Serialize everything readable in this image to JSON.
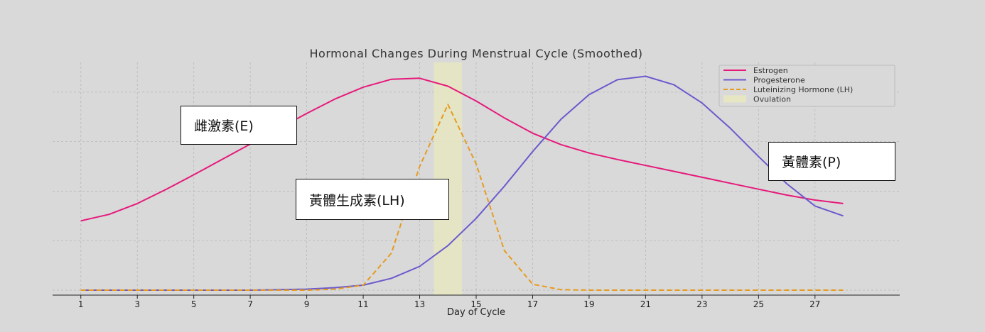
{
  "chart_data": {
    "type": "line",
    "title": "Hormonal Changes During Menstrual Cycle (Smoothed)",
    "xlabel": "Day of Cycle",
    "ylabel": "",
    "x": [
      1,
      2,
      3,
      4,
      5,
      6,
      7,
      8,
      9,
      10,
      11,
      12,
      13,
      14,
      15,
      16,
      17,
      18,
      19,
      20,
      21,
      22,
      23,
      24,
      25,
      26,
      27,
      28
    ],
    "xlim": [
      0,
      30
    ],
    "ylim": [
      -0.1,
      4.6
    ],
    "xticks": [
      1,
      3,
      5,
      7,
      9,
      11,
      13,
      15,
      17,
      19,
      21,
      23,
      25,
      27
    ],
    "grid": true,
    "legend_position": "top-right",
    "series": [
      {
        "name": "Estrogen",
        "color": "#e6197a",
        "style": "solid",
        "values": [
          1.4,
          1.53,
          1.75,
          2.03,
          2.33,
          2.64,
          2.95,
          3.26,
          3.57,
          3.86,
          4.1,
          4.26,
          4.28,
          4.12,
          3.82,
          3.48,
          3.17,
          2.94,
          2.77,
          2.64,
          2.52,
          2.4,
          2.28,
          2.16,
          2.04,
          1.92,
          1.82,
          1.75
        ]
      },
      {
        "name": "Progesterone",
        "color": "#6a5acd",
        "style": "solid",
        "values": [
          0.0,
          0.0,
          0.0,
          0.0,
          0.0,
          0.0,
          0.0,
          0.01,
          0.02,
          0.05,
          0.1,
          0.24,
          0.48,
          0.9,
          1.45,
          2.1,
          2.8,
          3.45,
          3.95,
          4.25,
          4.32,
          4.15,
          3.78,
          3.27,
          2.7,
          2.15,
          1.7,
          1.5
        ]
      },
      {
        "name": "Luteinizing Hormone (LH)",
        "color": "#e69b1f",
        "style": "dashed",
        "values": [
          0.0,
          0.0,
          0.0,
          0.0,
          0.0,
          0.0,
          0.0,
          0.0,
          0.0,
          0.02,
          0.1,
          0.75,
          2.5,
          3.75,
          2.55,
          0.8,
          0.12,
          0.01,
          0.0,
          0.0,
          0.0,
          0.0,
          0.0,
          0.0,
          0.0,
          0.0,
          0.0,
          0.0
        ]
      }
    ],
    "shaded_regions": [
      {
        "name": "Ovulation",
        "x_start": 13.5,
        "x_end": 14.5,
        "color": "#e6e6c2"
      }
    ]
  },
  "annotations": [
    {
      "id": "estrogen",
      "text": "雌激素(E)"
    },
    {
      "id": "lh",
      "text": "黃體生成素(LH)"
    },
    {
      "id": "progesterone",
      "text": "黃體素(P)"
    }
  ]
}
